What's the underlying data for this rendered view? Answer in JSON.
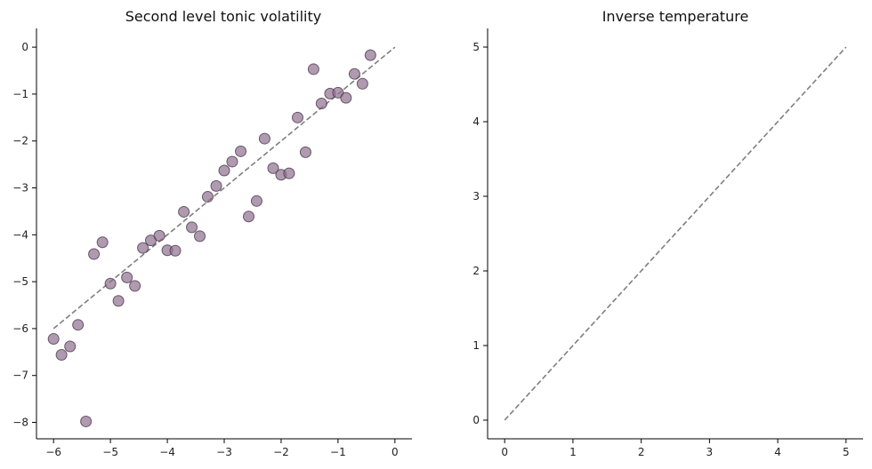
{
  "chart_data": [
    {
      "type": "scatter",
      "title": "Second level tonic volatility",
      "xlabel": "",
      "ylabel": "",
      "xlim": [
        -6.3,
        0.3
      ],
      "ylim": [
        -8.35,
        0.4
      ],
      "xticks": [
        -6,
        -5,
        -4,
        -3,
        -2,
        -1,
        0
      ],
      "yticks": [
        -8,
        -7,
        -6,
        -5,
        -4,
        -3,
        -2,
        -1,
        0
      ],
      "grid": false,
      "point_color": "#8e6f8e",
      "reference_line": {
        "x": [
          -6,
          0
        ],
        "y": [
          -6,
          0
        ],
        "color": "#7f7f7f",
        "style": "dashed"
      },
      "points": [
        {
          "x": -6.0,
          "y": -6.22
        },
        {
          "x": -5.86,
          "y": -6.56
        },
        {
          "x": -5.71,
          "y": -6.38
        },
        {
          "x": -5.57,
          "y": -5.92
        },
        {
          "x": -5.43,
          "y": -7.98
        },
        {
          "x": -5.29,
          "y": -4.41
        },
        {
          "x": -5.14,
          "y": -4.16
        },
        {
          "x": -5.0,
          "y": -5.04
        },
        {
          "x": -4.86,
          "y": -5.41
        },
        {
          "x": -4.71,
          "y": -4.91
        },
        {
          "x": -4.57,
          "y": -5.09
        },
        {
          "x": -4.43,
          "y": -4.28
        },
        {
          "x": -4.29,
          "y": -4.12
        },
        {
          "x": -4.14,
          "y": -4.02
        },
        {
          "x": -4.0,
          "y": -4.33
        },
        {
          "x": -3.86,
          "y": -4.34
        },
        {
          "x": -3.71,
          "y": -3.51
        },
        {
          "x": -3.57,
          "y": -3.84
        },
        {
          "x": -3.43,
          "y": -4.03
        },
        {
          "x": -3.29,
          "y": -3.19
        },
        {
          "x": -3.14,
          "y": -2.96
        },
        {
          "x": -3.0,
          "y": -2.63
        },
        {
          "x": -2.86,
          "y": -2.44
        },
        {
          "x": -2.71,
          "y": -2.22
        },
        {
          "x": -2.57,
          "y": -3.61
        },
        {
          "x": -2.43,
          "y": -3.28
        },
        {
          "x": -2.29,
          "y": -1.95
        },
        {
          "x": -2.14,
          "y": -2.58
        },
        {
          "x": -2.0,
          "y": -2.72
        },
        {
          "x": -1.86,
          "y": -2.69
        },
        {
          "x": -1.71,
          "y": -1.5
        },
        {
          "x": -1.57,
          "y": -2.24
        },
        {
          "x": -1.43,
          "y": -0.47
        },
        {
          "x": -1.29,
          "y": -1.2
        },
        {
          "x": -1.14,
          "y": -0.99
        },
        {
          "x": -1.0,
          "y": -0.97
        },
        {
          "x": -0.86,
          "y": -1.08
        },
        {
          "x": -0.71,
          "y": -0.57
        },
        {
          "x": -0.57,
          "y": -0.78
        },
        {
          "x": -0.43,
          "y": -0.17
        }
      ]
    },
    {
      "type": "line",
      "title": "Inverse temperature",
      "xlabel": "",
      "ylabel": "",
      "xlim": [
        -0.25,
        5.25
      ],
      "ylim": [
        -0.25,
        5.25
      ],
      "xticks": [
        0,
        1,
        2,
        3,
        4,
        5
      ],
      "yticks": [
        0,
        1,
        2,
        3,
        4,
        5
      ],
      "grid": false,
      "reference_line": {
        "x": [
          0,
          5
        ],
        "y": [
          0,
          5
        ],
        "color": "#7f7f7f",
        "style": "dashed"
      },
      "points": []
    }
  ]
}
